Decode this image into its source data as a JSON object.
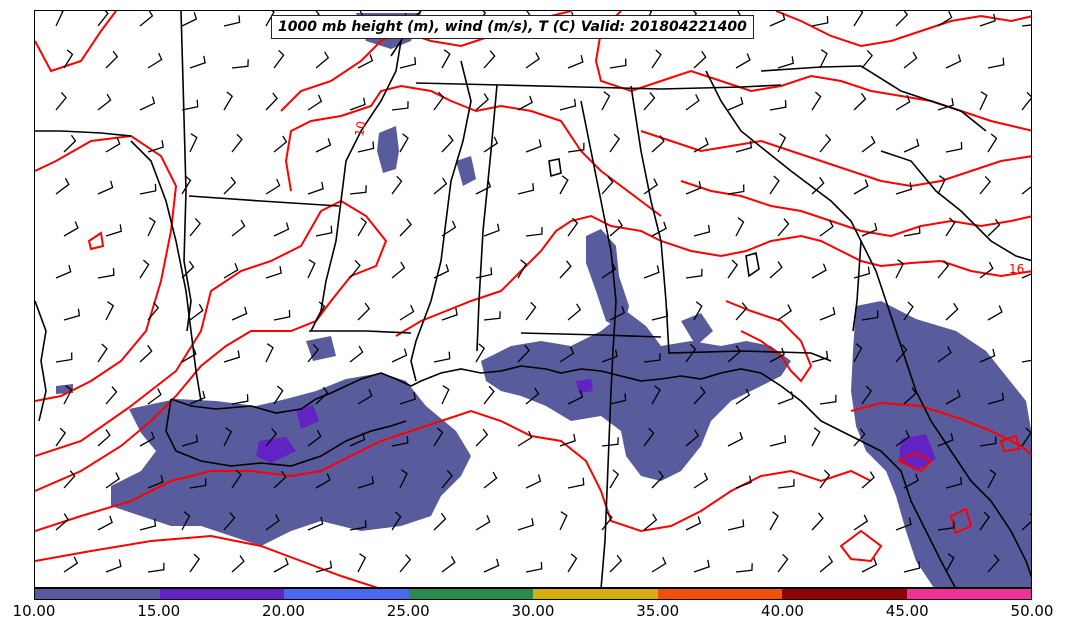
{
  "title": "1000 mb height (m), wind (m/s), T (C) Valid: 201804221400",
  "contour_labels": [
    "10",
    "16"
  ],
  "colorbar": {
    "ticks": [
      "10.00",
      "15.00",
      "20.00",
      "25.00",
      "30.00",
      "35.00",
      "40.00",
      "45.00",
      "50.00"
    ],
    "colors": [
      "#585b9c",
      "#6222c4",
      "#4a68f0",
      "#2c8a4e",
      "#d4ae10",
      "#f24f0a",
      "#8e0405",
      "#f03296"
    ]
  },
  "colors": {
    "precip_shading": "#585b9c",
    "precip_core": "#6222c4",
    "height_contour": "#ff0000",
    "boundaries": "#000000"
  }
}
